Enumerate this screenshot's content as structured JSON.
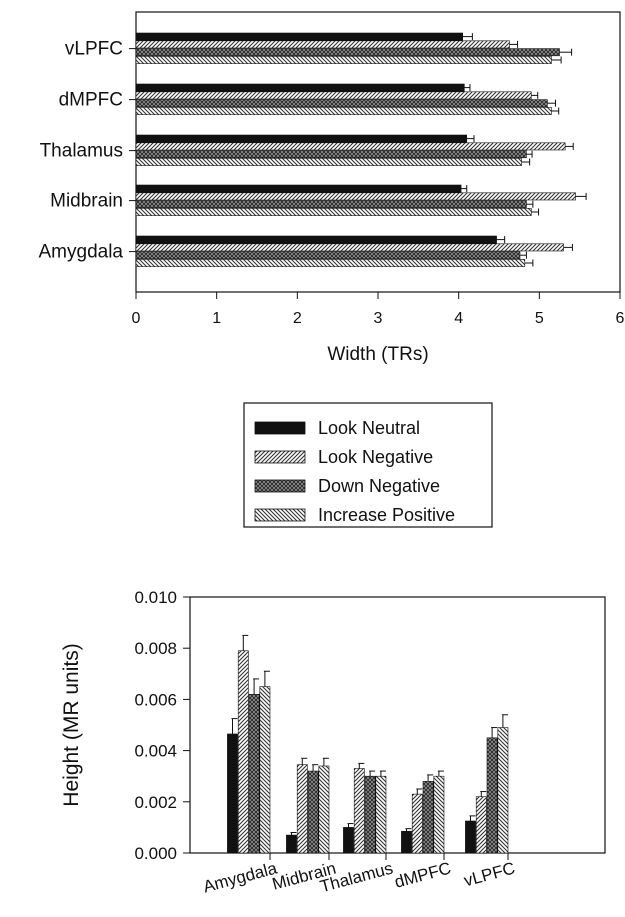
{
  "series_legend": [
    {
      "name": "Look Neutral",
      "pattern": "solid"
    },
    {
      "name": "Look Negative",
      "pattern": "diag-right"
    },
    {
      "name": "Down Negative",
      "pattern": "crosshatch"
    },
    {
      "name": "Increase Positive",
      "pattern": "diag-left"
    }
  ],
  "chart_data": [
    {
      "type": "bar",
      "orientation": "horizontal",
      "categories": [
        "vLPFC",
        "dMPFC",
        "Thalamus",
        "Midbrain",
        "Amygdala"
      ],
      "series": [
        {
          "name": "Look Neutral",
          "values": [
            4.05,
            4.07,
            4.1,
            4.03,
            4.47
          ],
          "errors": [
            0.12,
            0.07,
            0.09,
            0.07,
            0.1
          ]
        },
        {
          "name": "Look Negative",
          "values": [
            4.63,
            4.9,
            5.32,
            5.45,
            5.3
          ],
          "errors": [
            0.1,
            0.08,
            0.1,
            0.13,
            0.11
          ]
        },
        {
          "name": "Down Negative",
          "values": [
            5.25,
            5.1,
            4.84,
            4.84,
            4.76
          ],
          "errors": [
            0.15,
            0.1,
            0.07,
            0.08,
            0.08
          ]
        },
        {
          "name": "Increase Positive",
          "values": [
            5.15,
            5.15,
            4.78,
            4.9,
            4.82
          ],
          "errors": [
            0.12,
            0.09,
            0.1,
            0.09,
            0.1
          ]
        }
      ],
      "xlabel": "Width (TRs)",
      "ylabel": "",
      "xlim": [
        0,
        6
      ],
      "xticks": [
        "0",
        "1",
        "2",
        "3",
        "4",
        "5",
        "6"
      ],
      "grid": false
    },
    {
      "type": "bar",
      "orientation": "vertical",
      "categories": [
        "Amygdala",
        "Midbrain",
        "Thalamus",
        "dMPFC",
        "vLPFC"
      ],
      "series": [
        {
          "name": "Look Neutral",
          "values": [
            0.00465,
            0.0007,
            0.001,
            0.00085,
            0.00125
          ],
          "errors": [
            0.0006,
            0.0001,
            0.00015,
            0.0001,
            0.0002
          ]
        },
        {
          "name": "Look Negative",
          "values": [
            0.0079,
            0.00345,
            0.0033,
            0.0023,
            0.0022
          ],
          "errors": [
            0.0006,
            0.00025,
            0.0002,
            0.0002,
            0.0002
          ]
        },
        {
          "name": "Down Negative",
          "values": [
            0.0062,
            0.0032,
            0.003,
            0.0028,
            0.0045
          ],
          "errors": [
            0.0006,
            0.00025,
            0.0002,
            0.00025,
            0.0004
          ]
        },
        {
          "name": "Increase Positive",
          "values": [
            0.0065,
            0.0034,
            0.003,
            0.003,
            0.0049
          ],
          "errors": [
            0.0006,
            0.0003,
            0.0002,
            0.0002,
            0.0005
          ]
        }
      ],
      "xlabel": "",
      "ylabel": "Height (MR units)",
      "ylim": [
        0,
        0.01
      ],
      "yticks": [
        "0.000",
        "0.002",
        "0.004",
        "0.006",
        "0.008",
        "0.010"
      ],
      "grid": false
    }
  ]
}
